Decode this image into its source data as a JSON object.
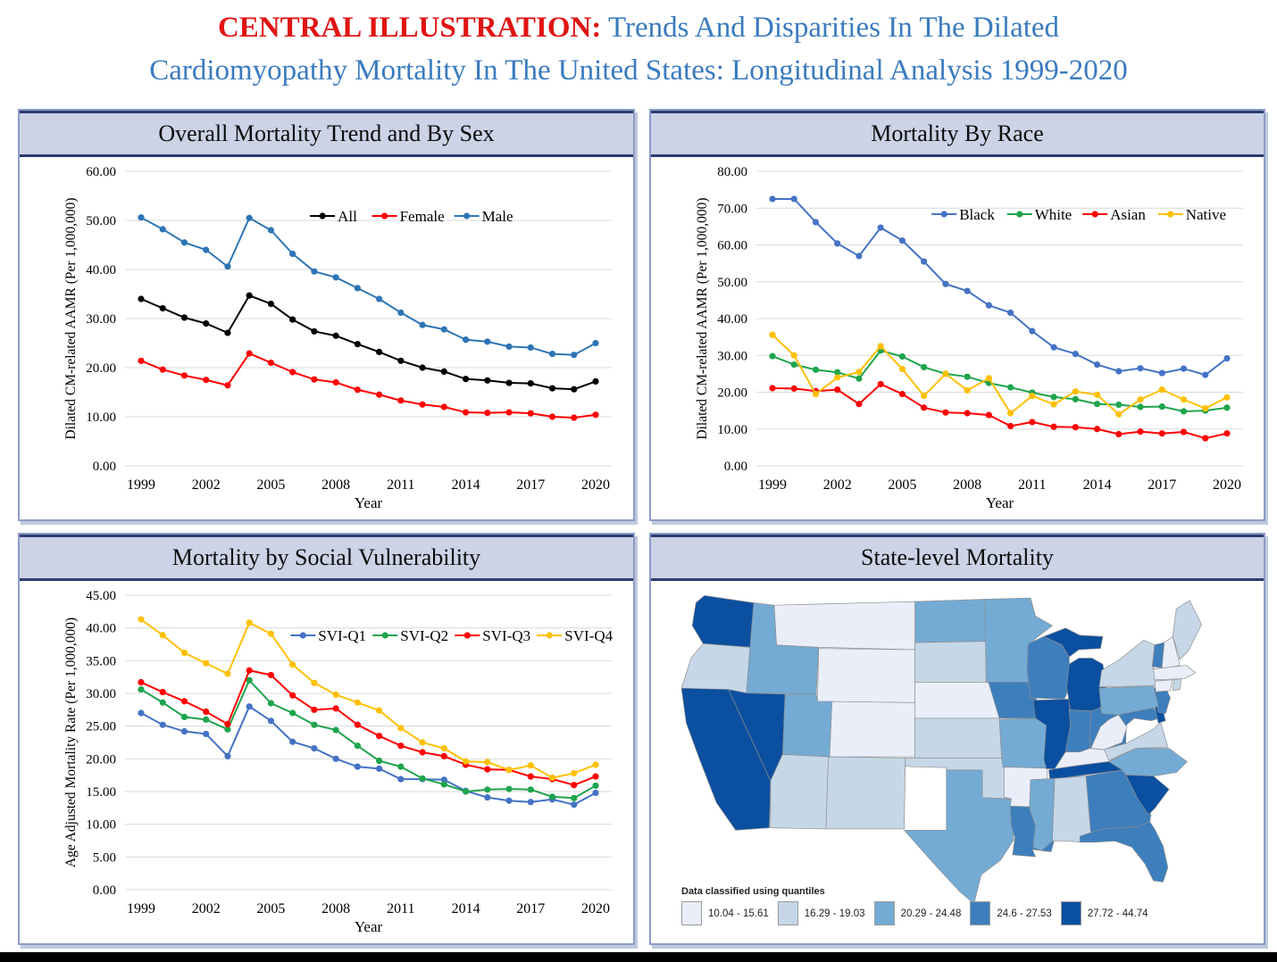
{
  "page": {
    "title_prefix": "CENTRAL ILLUSTRATION:",
    "title_line1_rest": " Trends And Disparities In The Dilated",
    "title_line2": "Cardiomyopathy Mortality In The United States: Longitudinal Analysis 1999-2020"
  },
  "chart_data": [
    {
      "type": "line",
      "title": "Overall Mortality Trend and By Sex",
      "x": [
        1999,
        2000,
        2001,
        2002,
        2003,
        2004,
        2005,
        2006,
        2007,
        2008,
        2009,
        2010,
        2011,
        2012,
        2013,
        2014,
        2015,
        2016,
        2017,
        2018,
        2019,
        2020
      ],
      "xticks": [
        1999,
        2002,
        2005,
        2008,
        2011,
        2014,
        2017,
        2020
      ],
      "xlabel": "Year",
      "ylabel": "Dilated CM-related AAMR (Per 1,000,000)",
      "ylim": [
        0,
        60
      ],
      "ytick_step": 10,
      "grid": true,
      "legend_position": "inside-top",
      "series": [
        {
          "name": "All",
          "color": "#000000",
          "values": [
            34.0,
            32.1,
            30.2,
            29.0,
            27.1,
            34.7,
            33.0,
            29.8,
            27.4,
            26.5,
            24.8,
            23.2,
            21.4,
            20.0,
            19.2,
            17.7,
            17.4,
            16.9,
            16.8,
            15.8,
            15.6,
            17.2
          ]
        },
        {
          "name": "Female",
          "color": "#ff0000",
          "values": [
            21.4,
            19.6,
            18.4,
            17.5,
            16.4,
            22.9,
            21.0,
            19.1,
            17.6,
            17.0,
            15.5,
            14.5,
            13.3,
            12.5,
            12.0,
            10.9,
            10.8,
            10.9,
            10.7,
            10.0,
            9.8,
            10.4
          ]
        },
        {
          "name": "Male",
          "color": "#2e75b6",
          "values": [
            50.6,
            48.2,
            45.5,
            44.0,
            40.6,
            50.5,
            48.0,
            43.2,
            39.6,
            38.4,
            36.2,
            34.0,
            31.2,
            28.7,
            27.8,
            25.7,
            25.3,
            24.3,
            24.1,
            22.8,
            22.6,
            25.0
          ]
        }
      ],
      "legend_x_frac": 0.38,
      "legend_y": 50
    },
    {
      "type": "line",
      "title": "Mortality By Race",
      "x": [
        1999,
        2000,
        2001,
        2002,
        2003,
        2004,
        2005,
        2006,
        2007,
        2008,
        2009,
        2010,
        2011,
        2012,
        2013,
        2014,
        2015,
        2016,
        2017,
        2018,
        2019,
        2020
      ],
      "xticks": [
        1999,
        2002,
        2005,
        2008,
        2011,
        2014,
        2017,
        2020
      ],
      "xlabel": "Year",
      "ylabel": "Dilated CM-related AAMR (Per 1,000,000)",
      "ylim": [
        0,
        80
      ],
      "ytick_step": 10,
      "grid": true,
      "legend_position": "inside-top",
      "series": [
        {
          "name": "Black",
          "color": "#4472c4",
          "values": [
            72.5,
            72.5,
            66.2,
            60.4,
            57.0,
            64.7,
            61.2,
            55.5,
            49.4,
            47.5,
            43.6,
            41.6,
            36.6,
            32.2,
            30.4,
            27.5,
            25.7,
            26.5,
            25.2,
            26.4,
            24.7,
            29.2
          ]
        },
        {
          "name": "White",
          "color": "#1ea44c",
          "values": [
            29.8,
            27.5,
            26.1,
            25.4,
            23.7,
            31.3,
            29.7,
            26.8,
            25.0,
            24.2,
            22.5,
            21.3,
            19.9,
            18.7,
            18.1,
            16.8,
            16.6,
            16.0,
            16.1,
            14.8,
            15.0,
            15.8
          ]
        },
        {
          "name": "Asian",
          "color": "#ff0000",
          "values": [
            21.1,
            21.0,
            20.3,
            20.7,
            16.8,
            22.2,
            19.5,
            15.8,
            14.5,
            14.3,
            13.8,
            10.8,
            11.9,
            10.6,
            10.5,
            10.0,
            8.6,
            9.3,
            8.8,
            9.2,
            7.5,
            8.8
          ]
        },
        {
          "name": "Native",
          "color": "#ffc000",
          "values": [
            35.6,
            30.0,
            19.5,
            24.0,
            25.5,
            32.5,
            26.3,
            19.0,
            25.0,
            20.5,
            23.8,
            14.3,
            19.0,
            16.7,
            20.2,
            19.3,
            14.0,
            18.0,
            20.7,
            18.0,
            15.6,
            18.6
          ]
        }
      ],
      "legend_x_frac": 0.36,
      "legend_y": 48
    },
    {
      "type": "line",
      "title": "Mortality by Social Vulnerability",
      "x": [
        1999,
        2000,
        2001,
        2002,
        2003,
        2004,
        2005,
        2006,
        2007,
        2008,
        2009,
        2010,
        2011,
        2012,
        2013,
        2014,
        2015,
        2016,
        2017,
        2018,
        2019,
        2020
      ],
      "xticks": [
        1999,
        2002,
        2005,
        2008,
        2011,
        2014,
        2017,
        2020
      ],
      "xlabel": "Year",
      "ylabel": "Age Adjusted Mortality Rate (Per 1,000,000)",
      "ylim": [
        0,
        45
      ],
      "ytick_step": 5,
      "grid": true,
      "legend_position": "inside-top",
      "series": [
        {
          "name": "SVI-Q1",
          "color": "#4472c4",
          "values": [
            27.0,
            25.2,
            24.2,
            23.8,
            20.4,
            28.0,
            25.8,
            22.6,
            21.6,
            20.0,
            18.8,
            18.5,
            16.9,
            16.9,
            16.8,
            15.1,
            14.1,
            13.6,
            13.4,
            13.8,
            13.0,
            14.8
          ]
        },
        {
          "name": "SVI-Q2",
          "color": "#1ea44c",
          "values": [
            30.6,
            28.6,
            26.4,
            26.0,
            24.5,
            32.0,
            28.5,
            27.0,
            25.2,
            24.4,
            22.0,
            19.7,
            18.8,
            17.0,
            16.1,
            15.0,
            15.3,
            15.4,
            15.3,
            14.2,
            14.0,
            15.9
          ]
        },
        {
          "name": "SVI-Q3",
          "color": "#ff0000",
          "values": [
            31.7,
            30.2,
            28.8,
            27.2,
            25.3,
            33.5,
            32.8,
            29.7,
            27.5,
            27.7,
            25.2,
            23.5,
            22.0,
            21.0,
            20.4,
            19.1,
            18.4,
            18.3,
            17.3,
            16.9,
            16.0,
            17.3
          ]
        },
        {
          "name": "SVI-Q4",
          "color": "#ffc000",
          "values": [
            41.3,
            38.9,
            36.2,
            34.6,
            33.0,
            40.8,
            39.1,
            34.4,
            31.6,
            29.8,
            28.6,
            27.4,
            24.7,
            22.5,
            21.6,
            19.6,
            19.5,
            18.3,
            19.0,
            17.1,
            17.8,
            19.1
          ]
        }
      ],
      "legend_x_frac": 0.34,
      "legend_y": 45
    },
    {
      "type": "choropleth_map",
      "title": "State-level Mortality",
      "legend_note": "Data classified using quantiles",
      "classes": [
        {
          "label": "10.04 - 15.61",
          "color": "#e9eef9"
        },
        {
          "label": "16.29 - 19.03",
          "color": "#c6d7e8"
        },
        {
          "label": "20.29 - 24.48",
          "color": "#74abd4"
        },
        {
          "label": "24.6 - 27.53",
          "color": "#3d7fbc"
        },
        {
          "label": "27.72 - 44.74",
          "color": "#0b50a0"
        }
      ],
      "state_classes": {
        "WA": 5,
        "OR": 2,
        "CA": 5,
        "NV": 5,
        "ID": 3,
        "MT": 1,
        "WY": 1,
        "UT": 3,
        "CO": 1,
        "AZ": 2,
        "NM": 2,
        "ND": 3,
        "SD": 2,
        "NE": 1,
        "KS": 2,
        "OK": 2,
        "TX": 3,
        "MN": 3,
        "IA": 4,
        "MO": 3,
        "AR": 1,
        "LA": 4,
        "WI": 4,
        "IL": 5,
        "MI": 5,
        "IN": 4,
        "OH": 4,
        "KY": 1,
        "TN": 5,
        "MS": 3,
        "AL": 2,
        "GA": 4,
        "FL": 4,
        "SC": 5,
        "NC": 3,
        "VA": 2,
        "WV": 1,
        "MD": 4,
        "DE": 5,
        "NJ": 4,
        "PA": 3,
        "NY": 2,
        "VT": 4,
        "NH": 1,
        "ME": 2,
        "MA": 1,
        "CT": 1,
        "RI": 2
      },
      "stroke_color": "#8c8c8c"
    }
  ]
}
